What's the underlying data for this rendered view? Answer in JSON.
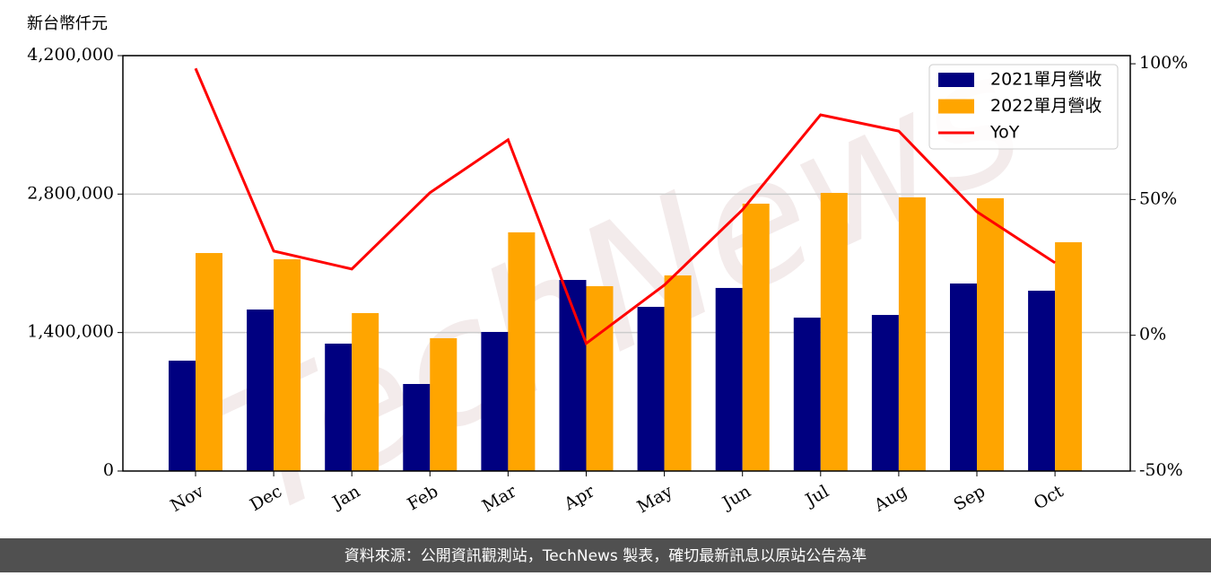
{
  "chart_data": {
    "type": "bar_line",
    "unit_label": "新台幣仟元",
    "watermark": "TechNews",
    "footer": "資料來源：公開資訊觀測站，TechNews 製表，確切最新訊息以原站公告為準",
    "categories": [
      "Nov",
      "Dec",
      "Jan",
      "Feb",
      "Mar",
      "Apr",
      "May",
      "Jun",
      "Jul",
      "Aug",
      "Sep",
      "Oct"
    ],
    "series": [
      {
        "name": "2021單月營收",
        "color": "#000080",
        "type": "bar",
        "values": [
          1116000,
          1633000,
          1288000,
          880000,
          1406000,
          1932000,
          1660000,
          1851000,
          1551000,
          1578000,
          1896000,
          1823000
        ]
      },
      {
        "name": "2022單月營收",
        "color": "#ffa500",
        "type": "bar",
        "values": [
          2204000,
          2141000,
          1597000,
          1343000,
          2413000,
          1869000,
          1978000,
          2703000,
          2812000,
          2767000,
          2758000,
          2313000
        ]
      },
      {
        "name": "YoY",
        "color": "#ff0000",
        "type": "line",
        "axis": "y2",
        "values": [
          98.3,
          31.0,
          24.4,
          52.5,
          72,
          -3,
          18.5,
          46.2,
          81.2,
          75.2,
          45.5,
          26.7
        ]
      }
    ],
    "ylim": [
      0,
      4200000
    ],
    "yticks": [
      0,
      {
        "value": 1400000,
        "label": "1,400,000"
      },
      {
        "value": 2800000,
        "label": "2,800,000"
      },
      {
        "value": 4200000,
        "label": "4,200,000"
      }
    ],
    "y2lim": [
      -50,
      103
    ],
    "y2ticks": [
      {
        "value": -50,
        "label": "-50%"
      },
      {
        "value": 0,
        "label": "0%"
      },
      {
        "value": 50,
        "label": "50%"
      },
      {
        "value": 100,
        "label": "100%"
      }
    ],
    "grid": true,
    "legend": "upper right"
  }
}
